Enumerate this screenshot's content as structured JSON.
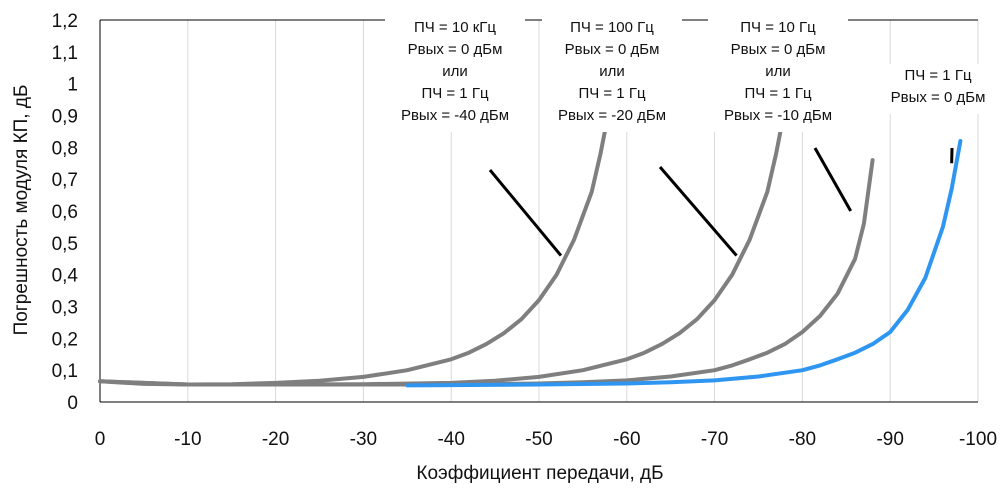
{
  "chart_data": {
    "type": "line",
    "xlabel": "Коэффициент передачи, дБ",
    "ylabel": "Погрешность модуля КП, дБ",
    "xlim": [
      0,
      -100
    ],
    "ylim": [
      0,
      1.2
    ],
    "x_ticks": [
      "0",
      "-10",
      "-20",
      "-30",
      "-40",
      "-50",
      "-60",
      "-70",
      "-80",
      "-90",
      "-100"
    ],
    "y_ticks": [
      "0",
      "0,1",
      "0,2",
      "0,3",
      "0,4",
      "0,5",
      "0,6",
      "0,7",
      "0,8",
      "0,9",
      "1",
      "1,1",
      "1,2"
    ],
    "grid": "vertical",
    "legend": "none",
    "series": [
      {
        "color": "#7f7f7f",
        "x": [
          0,
          -5,
          -10,
          -15,
          -20,
          -25,
          -30,
          -35,
          -40,
          -42,
          -44,
          -46,
          -48,
          -50,
          -52,
          -54,
          -56,
          -57,
          -58
        ],
        "y": [
          0.065,
          0.057,
          0.055,
          0.056,
          0.06,
          0.067,
          0.079,
          0.1,
          0.134,
          0.155,
          0.182,
          0.216,
          0.26,
          0.32,
          0.4,
          0.51,
          0.66,
          0.78,
          0.92
        ]
      },
      {
        "color": "#7f7f7f",
        "x": [
          0,
          -10,
          -20,
          -30,
          -40,
          -45,
          -50,
          -55,
          -60,
          -62,
          -64,
          -66,
          -68,
          -70,
          -72,
          -74,
          -76,
          -77,
          -78
        ],
        "y": [
          0.065,
          0.055,
          0.055,
          0.056,
          0.06,
          0.067,
          0.079,
          0.1,
          0.134,
          0.155,
          0.182,
          0.216,
          0.26,
          0.32,
          0.4,
          0.51,
          0.66,
          0.78,
          0.92
        ]
      },
      {
        "color": "#7f7f7f",
        "x": [
          0,
          -10,
          -20,
          -30,
          -40,
          -50,
          -55,
          -60,
          -65,
          -70,
          -72,
          -74,
          -76,
          -78,
          -80,
          -82,
          -84,
          -86,
          -87,
          -88
        ],
        "y": [
          0.065,
          0.055,
          0.055,
          0.055,
          0.055,
          0.058,
          0.062,
          0.068,
          0.08,
          0.1,
          0.115,
          0.134,
          0.155,
          0.182,
          0.22,
          0.27,
          0.34,
          0.45,
          0.56,
          0.76
        ]
      },
      {
        "color": "#2e96f0",
        "x": [
          -35,
          -40,
          -50,
          -60,
          -65,
          -70,
          -75,
          -80,
          -82,
          -84,
          -86,
          -88,
          -90,
          -92,
          -94,
          -96,
          -97,
          -98
        ],
        "y": [
          0.052,
          0.053,
          0.055,
          0.058,
          0.062,
          0.068,
          0.08,
          0.1,
          0.115,
          0.134,
          0.155,
          0.182,
          0.22,
          0.29,
          0.39,
          0.55,
          0.67,
          0.82
        ]
      }
    ],
    "annotations": [
      {
        "lines": [
          "ПЧ = 10 кГц",
          "Pвых = 0 дБм",
          "или",
          "ПЧ = 1 Гц",
          "Pвых = -40 дБм"
        ],
        "pointer_to": [
          -52.5,
          0.46
        ]
      },
      {
        "lines": [
          "ПЧ = 100 Гц",
          "Pвых =  0 дБм",
          "или",
          "ПЧ = 1 Гц",
          "Pвых = -20 дБм"
        ],
        "pointer_to": [
          -72.5,
          0.46
        ]
      },
      {
        "lines": [
          "ПЧ = 10 Гц",
          "Pвых = 0 дБм",
          "или",
          "ПЧ = 1 Гц",
          "Pвых = -10 дБм"
        ],
        "pointer_to": [
          -85.5,
          0.6
        ]
      },
      {
        "lines": [
          "ПЧ = 1 Гц",
          "Pвых = 0 дБм"
        ],
        "pointer_to": [
          -97,
          0.75
        ]
      }
    ]
  }
}
